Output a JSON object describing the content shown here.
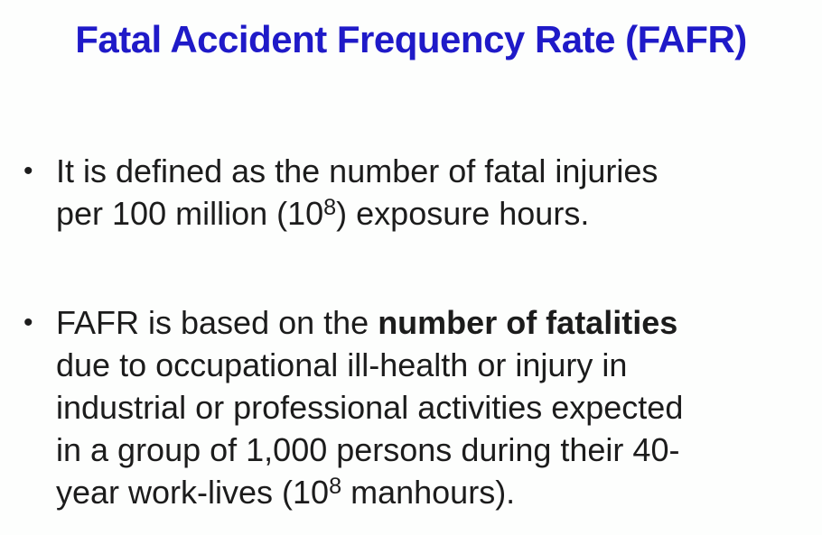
{
  "slide": {
    "title": "Fatal Accident Frequency Rate (FAFR)",
    "bullet_char": "•",
    "colors": {
      "title": "#1f1ac8",
      "text": "#1c1c1c",
      "background": "#fdfefd"
    },
    "bullets": [
      {
        "lines": [
          [
            {
              "t": "It is defined as the number of fatal injuries"
            }
          ],
          [
            {
              "t": "per 100 million (10"
            },
            {
              "t": "8",
              "sup": true
            },
            {
              "t": ") exposure hours."
            }
          ]
        ]
      },
      {
        "lines": [
          [
            {
              "t": "FAFR is based on the "
            },
            {
              "t": "number of fatalities",
              "b": true
            }
          ],
          [
            {
              "t": "due to occupational ill-health or injury in"
            }
          ],
          [
            {
              "t": "industrial or professional activities expected"
            }
          ],
          [
            {
              "t": "in a group of 1,000 persons during their 40-"
            }
          ],
          [
            {
              "t": "year work-lives (10"
            },
            {
              "t": "8",
              "sup": true
            },
            {
              "t": " manhours)."
            }
          ]
        ]
      }
    ]
  }
}
